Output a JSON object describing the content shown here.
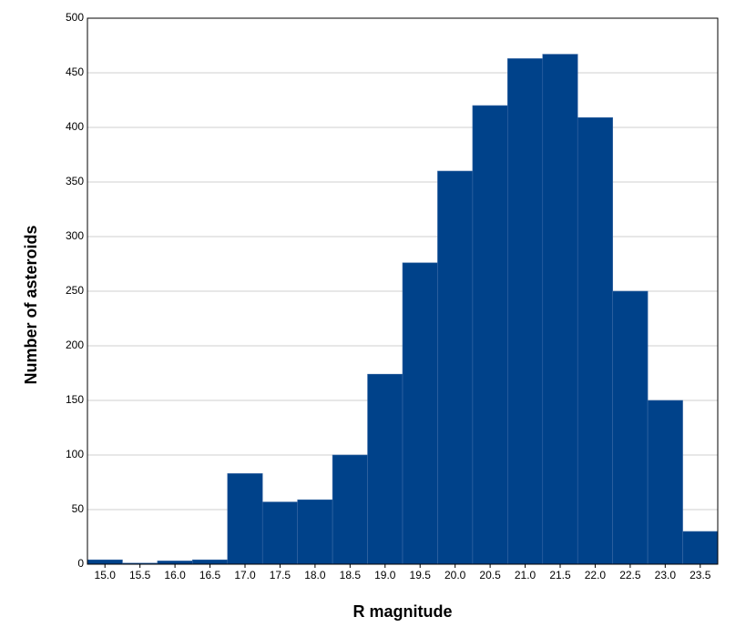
{
  "chart_data": {
    "type": "histogram",
    "x_label": "R magnitude",
    "y_label": "Number of asteroids",
    "bins": [
      14.75,
      15.25,
      15.75,
      16.25,
      16.75,
      17.25,
      17.75,
      18.25,
      18.75,
      19.25,
      19.75,
      20.25,
      20.75,
      21.25,
      21.75,
      22.25,
      22.75,
      23.25,
      23.75
    ],
    "counts": [
      4,
      1,
      3,
      4,
      83,
      57,
      59,
      100,
      174,
      276,
      360,
      420,
      463,
      467,
      409,
      250,
      150,
      30
    ],
    "color": "#00428a",
    "xlim": [
      14.75,
      23.75
    ],
    "xticks": [
      {
        "value": 15,
        "label": "15.0"
      },
      {
        "value": 15.5,
        "label": "15.5"
      },
      {
        "value": 16,
        "label": "16.0"
      },
      {
        "value": 16.5,
        "label": "16.5"
      },
      {
        "value": 17,
        "label": "17.0"
      },
      {
        "value": 17.5,
        "label": "17.5"
      },
      {
        "value": 18,
        "label": "18.0"
      },
      {
        "value": 18.5,
        "label": "18.5"
      },
      {
        "value": 19,
        "label": "19.0"
      },
      {
        "value": 19.5,
        "label": "19.5"
      },
      {
        "value": 20,
        "label": "20.0"
      },
      {
        "value": 20.5,
        "label": "20.5"
      },
      {
        "value": 21,
        "label": "21.0"
      },
      {
        "value": 21.5,
        "label": "21.5"
      },
      {
        "value": 22,
        "label": "22.0"
      },
      {
        "value": 22.5,
        "label": "22.5"
      },
      {
        "value": 23,
        "label": "23.0"
      },
      {
        "value": 23.5,
        "label": "23.5"
      }
    ],
    "ylim": [
      0,
      500
    ],
    "yticks": [
      0,
      50,
      100,
      150,
      200,
      250,
      300,
      350,
      400,
      450,
      500
    ],
    "grid": true
  }
}
